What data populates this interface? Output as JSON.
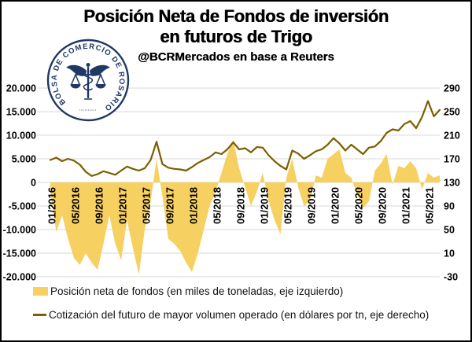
{
  "title": {
    "line1": "Posición Neta de Fondos de inversión",
    "line2": "en futuros de Trigo",
    "subtitle": "@BCRMercados en base a Reuters"
  },
  "logo": {
    "ring_text": "BOLSA DE COMERCIO DE ROSARIO",
    "color": "#1f3864"
  },
  "legend": [
    {
      "label": "Posición neta de fondos (en miles de toneladas, eje izquierdo)",
      "swatch": "area",
      "color": "#f6d060"
    },
    {
      "label": "Cotización del futuro de mayor volumen operado (en dólares por tn, eje derecho)",
      "swatch": "line",
      "color": "#7d5e00"
    }
  ],
  "chart_data": {
    "type": "combo",
    "x_start": "01/2016",
    "x_end": "07/2021",
    "x_interval": "monthly",
    "x_tick_labels": [
      "01/2016",
      "05/2016",
      "09/2016",
      "01/2017",
      "05/2017",
      "09/2017",
      "01/2018",
      "05/2018",
      "09/2018",
      "01/2019",
      "05/2019",
      "09/2019",
      "01/2020",
      "05/2020",
      "09/2020",
      "01/2021",
      "05/2021"
    ],
    "grid": true,
    "gridline_color": "#d9d9d9",
    "left_axis": {
      "ticks": [
        "20.000",
        "15.000",
        "10.000",
        "5.000",
        "0",
        "-5.000",
        "-10.000",
        "-15.000",
        "-20.000"
      ],
      "values": [
        20000,
        15000,
        10000,
        5000,
        0,
        -5000,
        -10000,
        -15000,
        -20000
      ],
      "range": [
        -20000,
        20000
      ]
    },
    "right_axis": {
      "ticks": [
        "290",
        "250",
        "210",
        "170",
        "130",
        "90",
        "50",
        "10",
        "-30"
      ],
      "values": [
        290,
        250,
        210,
        170,
        130,
        90,
        50,
        10,
        -30
      ],
      "range": [
        -30,
        290
      ]
    },
    "series": [
      {
        "name": "Posición neta de fondos (en miles de toneladas, eje izquierdo)",
        "type": "area",
        "axis": "left",
        "unit": "miles de toneladas",
        "color": "#f6d060",
        "values": [
          -2000,
          -10500,
          -7000,
          -12000,
          -16000,
          -17500,
          -15000,
          -17000,
          -18500,
          -13000,
          -7000,
          -13000,
          -16500,
          -8000,
          -14000,
          -19500,
          -10000,
          -4000,
          5000,
          -3000,
          -12000,
          -13000,
          -14500,
          -17000,
          -19000,
          -15000,
          -10000,
          -5000,
          -2000,
          2000,
          6000,
          9000,
          3000,
          -1000,
          -5000,
          -2000,
          2000,
          -4000,
          -8000,
          -11000,
          1000,
          5000,
          -1000,
          -5000,
          -4000,
          1500,
          1000,
          5000,
          6000,
          7000,
          2000,
          1000,
          -2500,
          -5500,
          -4000,
          2500,
          4000,
          6000,
          -500,
          3500,
          3000,
          4500,
          3000,
          -1500,
          2000,
          1000,
          1500
        ]
      },
      {
        "name": "Cotización del futuro de mayor volumen operado (en dólares por tn, eje derecho)",
        "type": "line",
        "axis": "right",
        "unit": "dólares por tn",
        "color": "#7d5e00",
        "values": [
          168,
          172,
          166,
          170,
          167,
          160,
          148,
          141,
          144,
          149,
          146,
          143,
          150,
          157,
          153,
          150,
          154,
          168,
          199,
          161,
          155,
          153,
          152,
          150,
          156,
          163,
          168,
          173,
          181,
          178,
          186,
          198,
          186,
          188,
          181,
          190,
          189,
          176,
          166,
          158,
          152,
          184,
          179,
          170,
          176,
          183,
          186,
          194,
          205,
          196,
          184,
          194,
          186,
          178,
          189,
          191,
          200,
          214,
          220,
          218,
          229,
          234,
          222,
          241,
          268,
          242,
          253
        ]
      }
    ]
  }
}
